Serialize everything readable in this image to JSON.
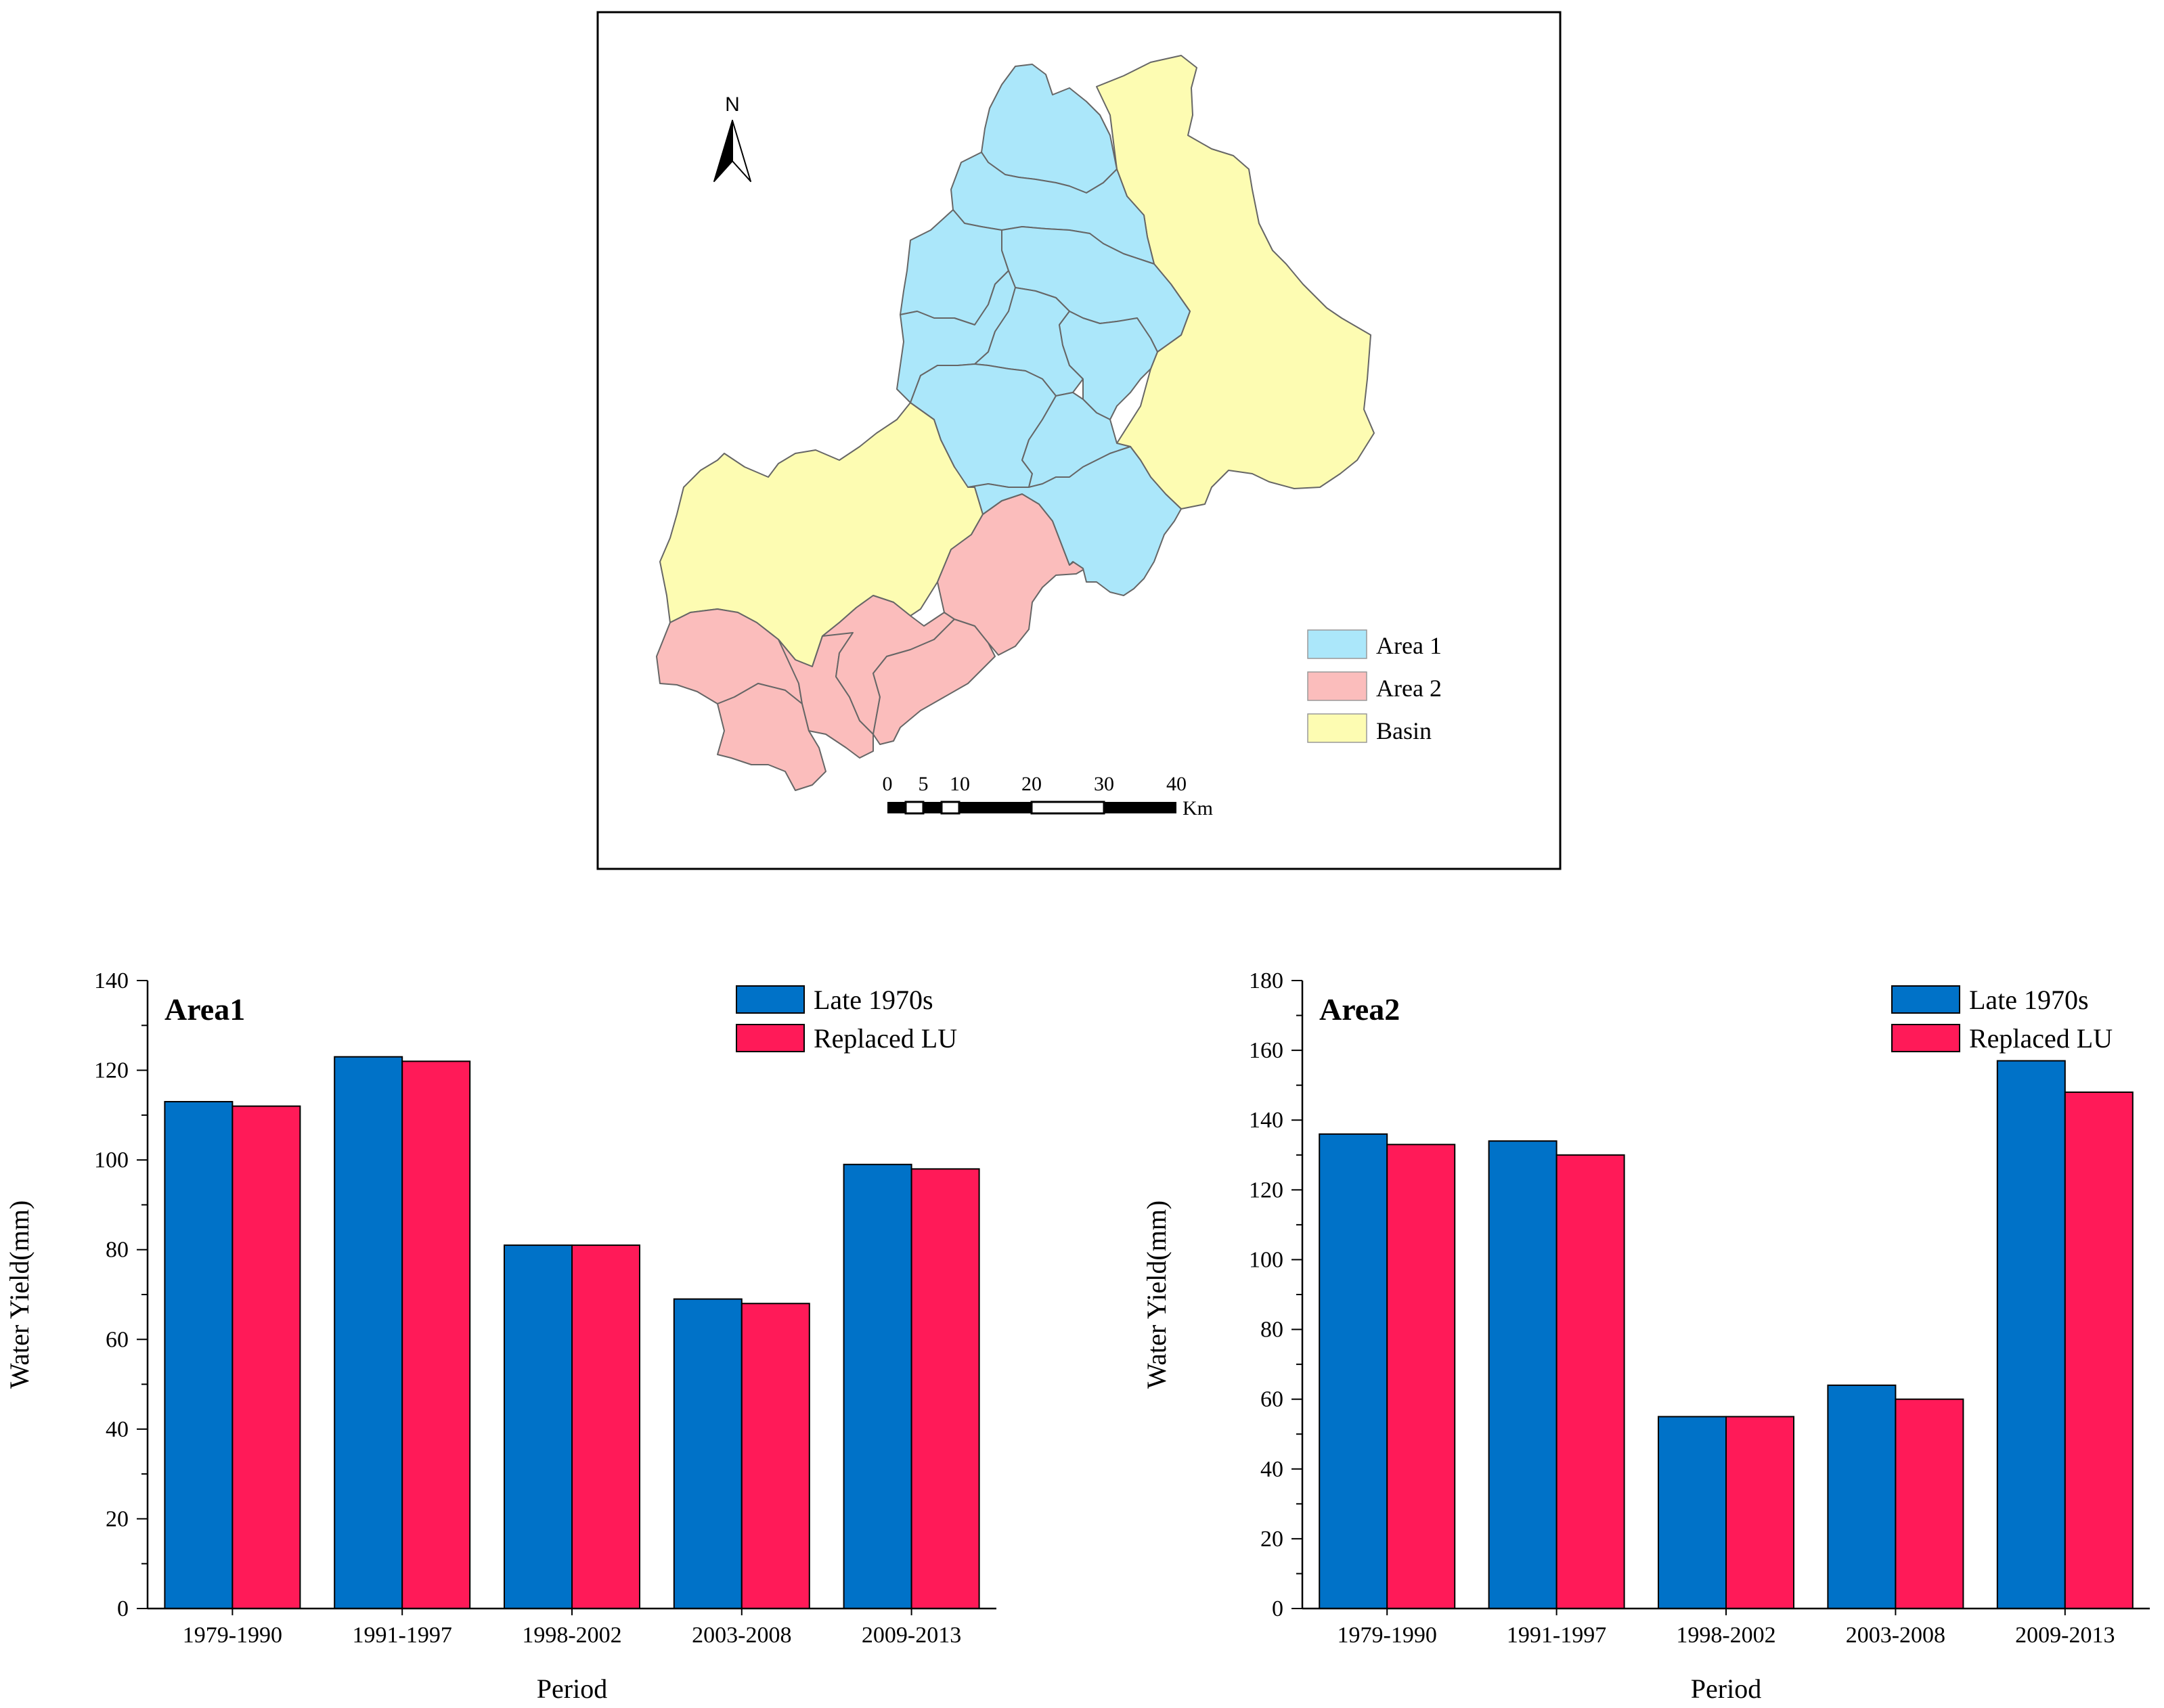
{
  "map": {
    "north_label": "N",
    "legend": [
      {
        "label": "Area 1",
        "color": "#ABE7FA"
      },
      {
        "label": "Area 2",
        "color": "#FBBDBC"
      },
      {
        "label": "Basin",
        "color": "#FDFCB2"
      }
    ],
    "scale_labels": [
      "0",
      "5",
      "10",
      "20",
      "30",
      "40"
    ],
    "scale_unit": "Km"
  },
  "colors": {
    "late": "#0072C8",
    "replaced": "#FF1A58",
    "outline": "#555555"
  },
  "chart_data": [
    {
      "type": "bar",
      "title": "Area1",
      "categories": [
        "1979-1990",
        "1991-1997",
        "1998-2002",
        "2003-2008",
        "2009-2013"
      ],
      "series": [
        {
          "name": "Late 1970s",
          "values": [
            113,
            123,
            81,
            69,
            99
          ]
        },
        {
          "name": "Replaced LU",
          "values": [
            112,
            122,
            81,
            68,
            98
          ]
        }
      ],
      "xlabel": "Period",
      "ylabel": "Water Yield(mm)",
      "ylim": [
        0,
        140
      ],
      "yticks": [
        0,
        20,
        40,
        60,
        80,
        100,
        120,
        140
      ],
      "yticks_labels": [
        "0",
        "20",
        "40",
        "60",
        "80",
        "100",
        "120",
        "140"
      ],
      "legend_position": "top-right"
    },
    {
      "type": "bar",
      "title": "Area2",
      "categories": [
        "1979-1990",
        "1991-1997",
        "1998-2002",
        "2003-2008",
        "2009-2013"
      ],
      "series": [
        {
          "name": "Late 1970s",
          "values": [
            136,
            134,
            55,
            64,
            157
          ]
        },
        {
          "name": "Replaced LU",
          "values": [
            133,
            130,
            55,
            60,
            148
          ]
        }
      ],
      "xlabel": "Period",
      "ylabel": "Water Yield(mm)",
      "ylim": [
        0,
        180
      ],
      "yticks": [
        0,
        20,
        40,
        60,
        80,
        100,
        120,
        140,
        160,
        180
      ],
      "yticks_labels": [
        "0",
        "20",
        "40",
        "60",
        "80",
        "100",
        "120",
        "140",
        "160",
        "180"
      ],
      "legend_position": "top-right"
    }
  ]
}
